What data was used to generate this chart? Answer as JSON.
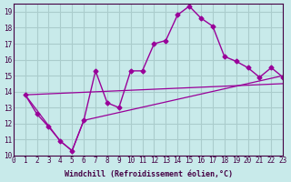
{
  "xlabel": "Windchill (Refroidissement éolien,°C)",
  "bg_color": "#c8eaea",
  "line_color": "#990099",
  "grid_color": "#aacccc",
  "xlim": [
    0,
    23
  ],
  "ylim": [
    10,
    19.5
  ],
  "yticks": [
    10,
    11,
    12,
    13,
    14,
    15,
    16,
    17,
    18,
    19
  ],
  "xticks": [
    0,
    1,
    2,
    3,
    4,
    5,
    6,
    7,
    8,
    9,
    10,
    11,
    12,
    13,
    14,
    15,
    16,
    17,
    18,
    19,
    20,
    21,
    22,
    23
  ],
  "line1_x": [
    1,
    2,
    3,
    4,
    5,
    6,
    7,
    8,
    9,
    10,
    11,
    12,
    13,
    14,
    15,
    16,
    17,
    18,
    19,
    20,
    21,
    22,
    23
  ],
  "line1_y": [
    13.8,
    12.6,
    11.8,
    10.9,
    10.3,
    12.2,
    15.3,
    13.3,
    13.0,
    15.3,
    15.3,
    17.0,
    17.2,
    18.8,
    19.35,
    18.6,
    18.1,
    16.2,
    15.9,
    15.5,
    14.9,
    15.5,
    14.9
  ],
  "line2_x": [
    1,
    4,
    5,
    6,
    23
  ],
  "line2_y": [
    13.8,
    10.9,
    10.3,
    12.2,
    15.0
  ],
  "line3_x": [
    1,
    23
  ],
  "line3_y": [
    13.8,
    14.5
  ]
}
